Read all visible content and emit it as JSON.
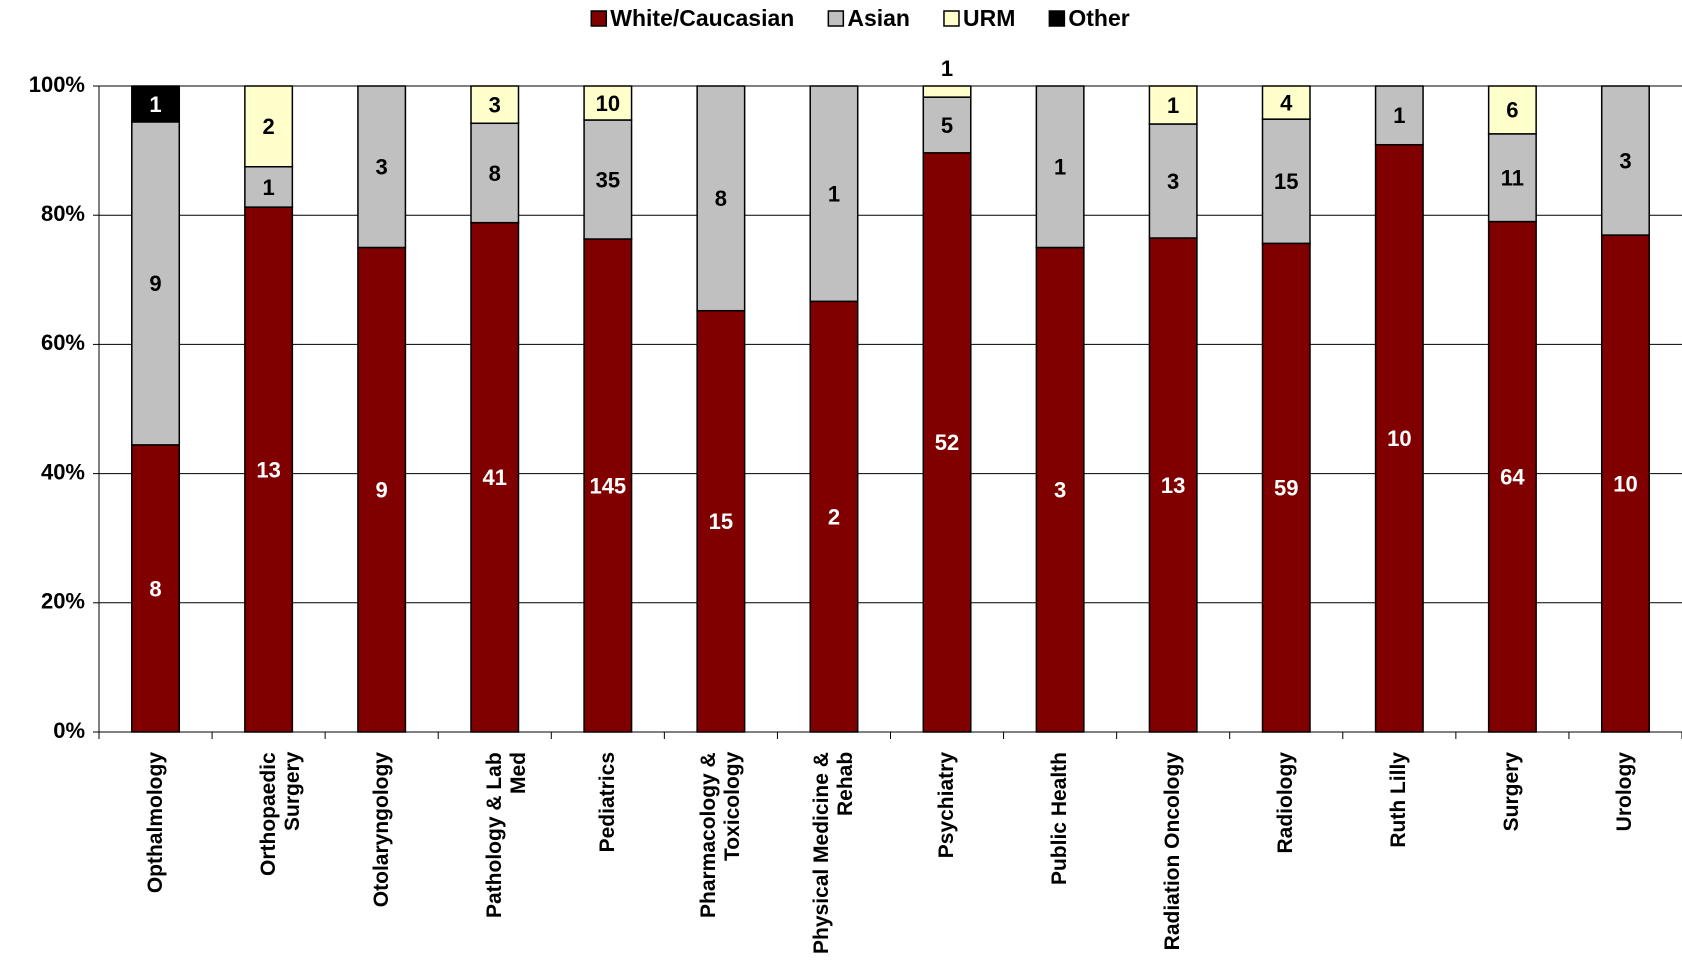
{
  "chart_data": {
    "type": "bar",
    "stack": "percent",
    "categories": [
      "Opthalmology",
      "Orthopaedic Surgery",
      "Otolaryngology",
      "Pathology & Lab Med",
      "Pediatrics",
      "Pharmacology & Toxicology",
      "Physical Medicine & Rehab",
      "Psychiatry",
      "Public Health",
      "Radiation Oncology",
      "Radiology",
      "Ruth Lilly",
      "Surgery",
      "Urology"
    ],
    "series": [
      {
        "name": "White/Caucasian",
        "color": "#800000",
        "label_color": "#ffffff",
        "values": [
          8,
          13,
          9,
          41,
          145,
          15,
          2,
          52,
          3,
          13,
          59,
          10,
          64,
          10
        ]
      },
      {
        "name": "Asian",
        "color": "#c0c0c0",
        "label_color": "#000000",
        "values": [
          9,
          1,
          3,
          8,
          35,
          8,
          1,
          5,
          1,
          3,
          15,
          1,
          11,
          3
        ]
      },
      {
        "name": "URM",
        "color": "#ffffcc",
        "label_color": "#000000",
        "values": [
          null,
          2,
          null,
          3,
          10,
          null,
          null,
          1,
          null,
          1,
          4,
          null,
          6,
          null
        ]
      },
      {
        "name": "Other",
        "color": "#000000",
        "label_color": "#ffffff",
        "values": [
          1,
          null,
          null,
          null,
          null,
          null,
          null,
          null,
          null,
          null,
          null,
          null,
          null,
          null
        ]
      }
    ],
    "ylim": [
      0,
      100
    ],
    "yticks": [
      {
        "value": 0,
        "label": "0%"
      },
      {
        "value": 20,
        "label": "20%"
      },
      {
        "value": 40,
        "label": "40%"
      },
      {
        "value": 60,
        "label": "60%"
      },
      {
        "value": 80,
        "label": "80%"
      },
      {
        "value": 100,
        "label": "100%"
      }
    ],
    "grid": true,
    "legend": "top"
  }
}
